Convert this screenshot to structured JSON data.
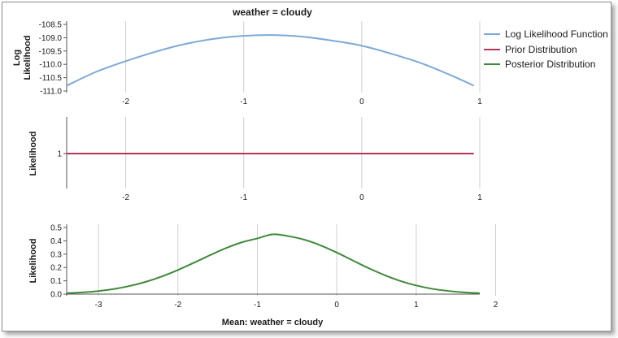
{
  "chart_data": {
    "type": "line",
    "title": "weather = cloudy",
    "xlabel": "Mean: weather = cloudy",
    "legend": {
      "placement": "top-right",
      "entries": [
        {
          "label": "Log Likelihood Function",
          "color": "#7ea9d6"
        },
        {
          "label": "Prior Distribution",
          "color": "#b8345a"
        },
        {
          "label": "Posterior Distribution",
          "color": "#3f8a3a"
        }
      ]
    },
    "panels": [
      {
        "id": "loglik",
        "ylabel_lines": [
          "Log",
          "Likelihood"
        ],
        "series_name": "Log Likelihood Function",
        "color": "#7ea9d6",
        "xlim": [
          -2.5,
          1.0
        ],
        "ylim": [
          -111.0,
          -108.5
        ],
        "x_ticks": [
          -2,
          -1,
          0,
          1
        ],
        "x_tick_labels": [
          "-2",
          "-1",
          "0",
          "1"
        ],
        "y_ticks": [
          -108.5,
          -109.0,
          -109.5,
          -110.0,
          -110.5,
          -111.0
        ],
        "y_tick_labels": [
          "-108.5",
          "-109.0",
          "-109.5",
          "-110.0",
          "-110.5",
          "-111.0"
        ],
        "grid": true,
        "x": [
          -2.5,
          -2.25,
          -2.0,
          -1.75,
          -1.5,
          -1.25,
          -1.0,
          -0.75,
          -0.5,
          -0.25,
          0.0,
          0.25,
          0.5,
          0.75,
          0.95
        ],
        "y": [
          -110.8,
          -110.28,
          -109.88,
          -109.53,
          -109.24,
          -109.04,
          -108.93,
          -108.9,
          -108.96,
          -109.11,
          -109.3,
          -109.6,
          -109.95,
          -110.4,
          -110.8
        ]
      },
      {
        "id": "prior",
        "ylabel_lines": [
          "Likelihood"
        ],
        "series_name": "Prior Distribution",
        "color": "#b8345a",
        "xlim": [
          -2.5,
          1.0
        ],
        "ylim": [
          0.5,
          1.5
        ],
        "x_ticks": [
          -2,
          -1,
          0,
          1
        ],
        "x_tick_labels": [
          "-2",
          "-1",
          "0",
          "1"
        ],
        "y_ticks": [
          1
        ],
        "y_tick_labels": [
          "1"
        ],
        "grid": true,
        "x": [
          -2.5,
          0.95
        ],
        "y": [
          1,
          1
        ]
      },
      {
        "id": "posterior",
        "ylabel_lines": [
          "Likelihood"
        ],
        "series_name": "Posterior Distribution",
        "color": "#3f8a3a",
        "xlim": [
          -3.4,
          1.8
        ],
        "ylim": [
          0.0,
          0.5
        ],
        "x_ticks": [
          -3,
          -2,
          -1,
          0,
          1,
          2
        ],
        "x_tick_labels": [
          "-3",
          "-2",
          "-1",
          "0",
          "1",
          "2"
        ],
        "y_ticks": [
          0.0,
          0.1,
          0.2,
          0.3,
          0.4,
          0.5
        ],
        "y_tick_labels": [
          "0.0",
          "0.1",
          "0.2",
          "0.3",
          "0.4",
          "0.5"
        ],
        "grid": true,
        "x": [
          -3.4,
          -3.2,
          -3.0,
          -2.8,
          -2.6,
          -2.4,
          -2.2,
          -2.0,
          -1.8,
          -1.6,
          -1.4,
          -1.2,
          -1.0,
          -0.8,
          -0.6,
          -0.4,
          -0.2,
          0.0,
          0.2,
          0.4,
          0.6,
          0.8,
          1.0,
          1.2,
          1.4,
          1.6,
          1.8
        ],
        "y": [
          0.007,
          0.013,
          0.023,
          0.039,
          0.062,
          0.093,
          0.133,
          0.181,
          0.235,
          0.291,
          0.344,
          0.388,
          0.418,
          0.449,
          0.434,
          0.407,
          0.365,
          0.312,
          0.253,
          0.195,
          0.143,
          0.099,
          0.065,
          0.04,
          0.024,
          0.013,
          0.007
        ]
      }
    ]
  }
}
